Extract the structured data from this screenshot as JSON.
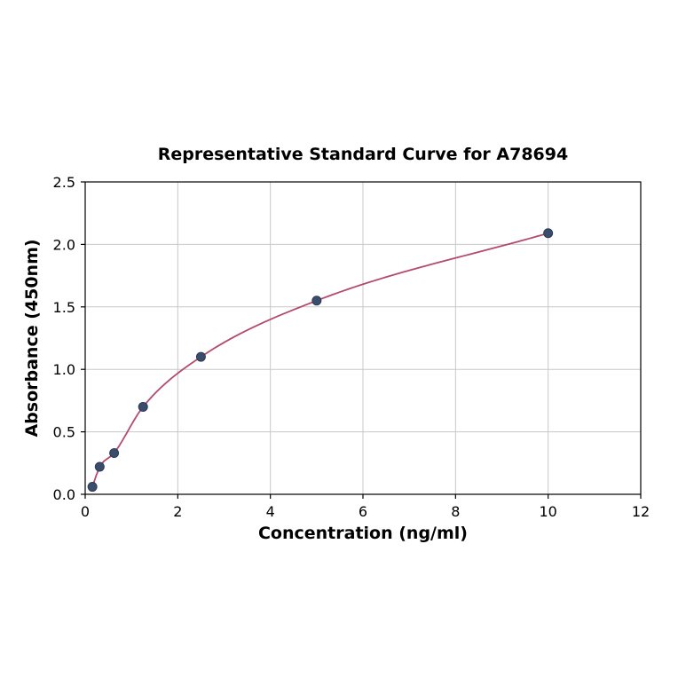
{
  "chart_data": {
    "type": "scatter",
    "title": "Representative Standard Curve for A78694",
    "xlabel": "Concentration (ng/ml)",
    "ylabel": "Absorbance (450nm)",
    "x": [
      0.156,
      0.313,
      0.625,
      1.25,
      2.5,
      5,
      10
    ],
    "y": [
      0.06,
      0.22,
      0.33,
      0.7,
      1.1,
      1.55,
      2.09
    ],
    "xlim": [
      0,
      12
    ],
    "ylim": [
      0,
      2.5
    ],
    "xticks": [
      0,
      2,
      4,
      6,
      8,
      10,
      12
    ],
    "xtick_labels": [
      "0",
      "2",
      "4",
      "6",
      "8",
      "10",
      "12"
    ],
    "yticks": [
      0,
      0.5,
      1.0,
      1.5,
      2.0,
      2.5
    ],
    "ytick_labels": [
      "0.0",
      "0.5",
      "1.0",
      "1.5",
      "2.0",
      "2.5"
    ],
    "grid": true,
    "legend": "none",
    "fit": "smooth saturating curve through points",
    "colors": {
      "curve": "#b34a6f",
      "point_fill": "#3b4d6d",
      "point_edge": "#2c3a55",
      "grid": "#c8c8c8",
      "frame": "#000000",
      "background": "#ffffff"
    }
  }
}
